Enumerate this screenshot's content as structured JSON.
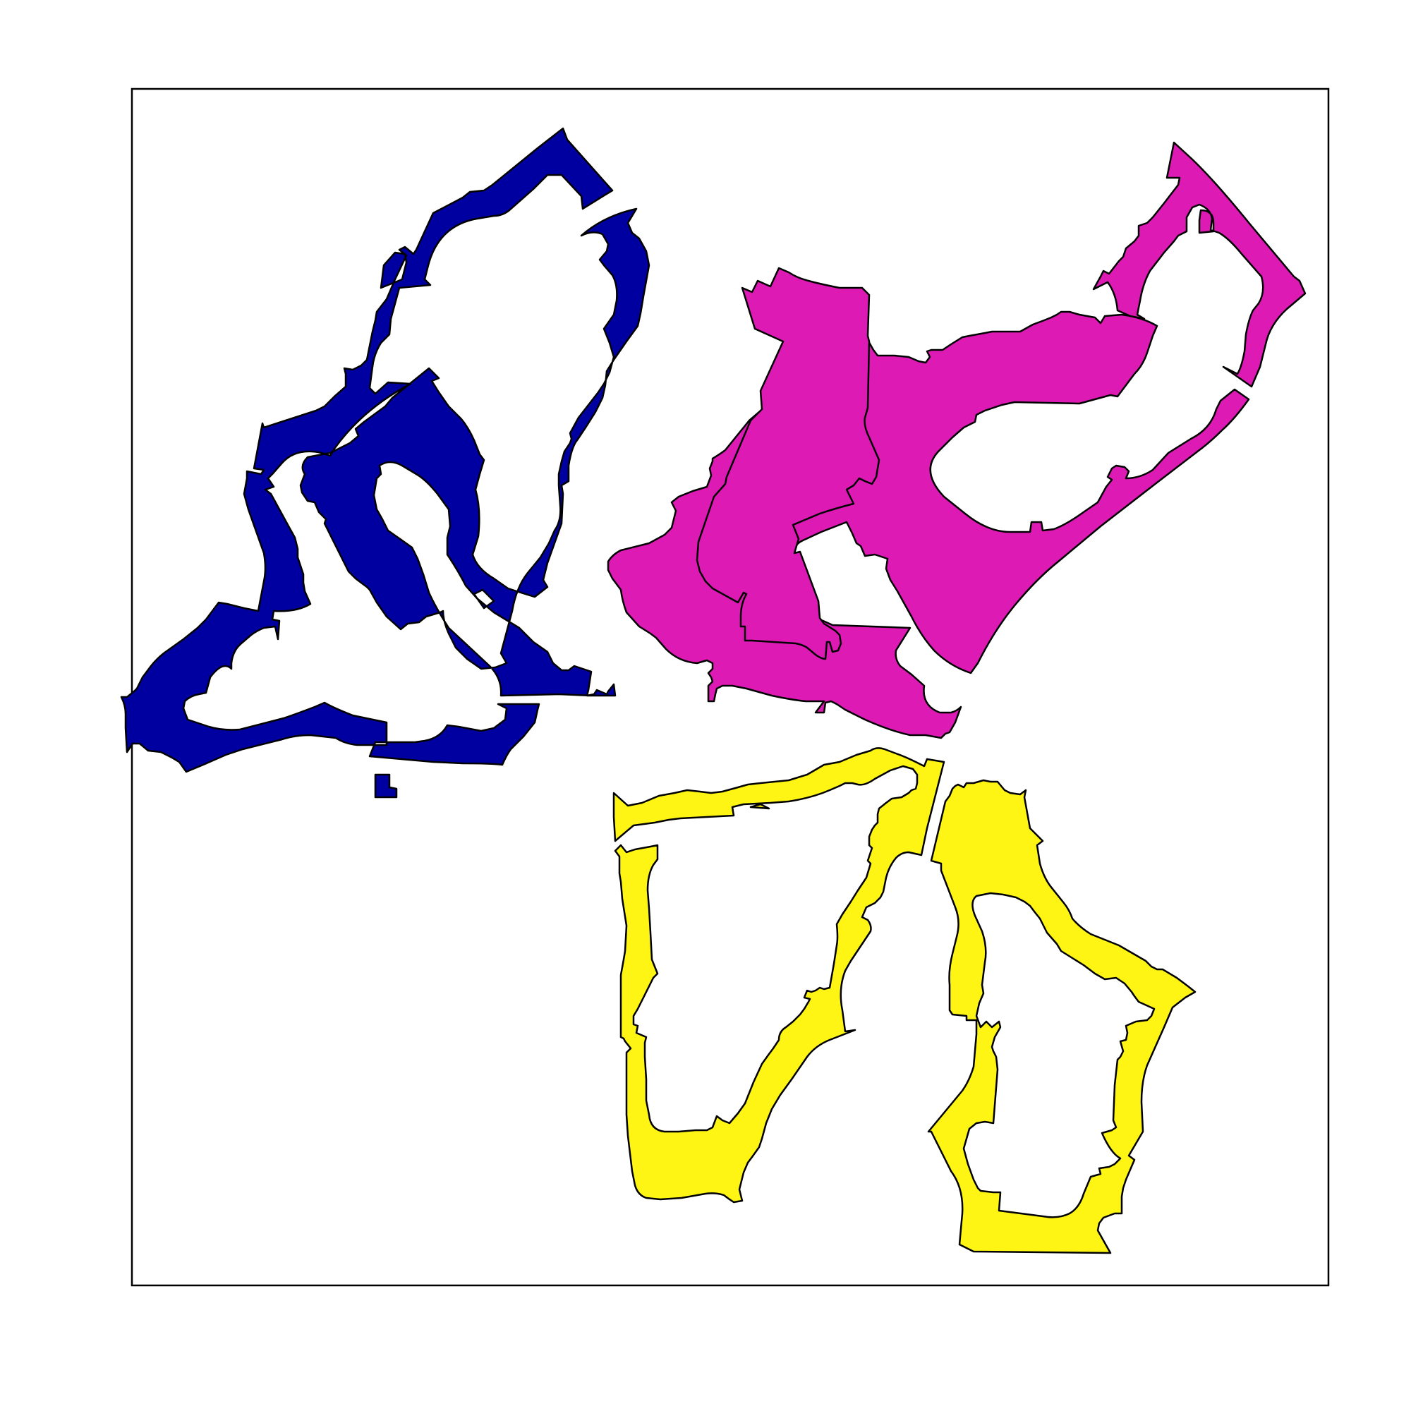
{
  "figure": {
    "title": "",
    "background": "#ffffff",
    "frame_color": "#000000"
  },
  "shapes": [
    {
      "id": "blue-ring-shape",
      "color": "#0000a0"
    },
    {
      "id": "magenta-ring-shape",
      "color": "#dd1ab4"
    },
    {
      "id": "yellow-left-ring-shape",
      "color": "#fff514"
    },
    {
      "id": "yellow-right-ring-shape",
      "color": "#fff514"
    }
  ]
}
